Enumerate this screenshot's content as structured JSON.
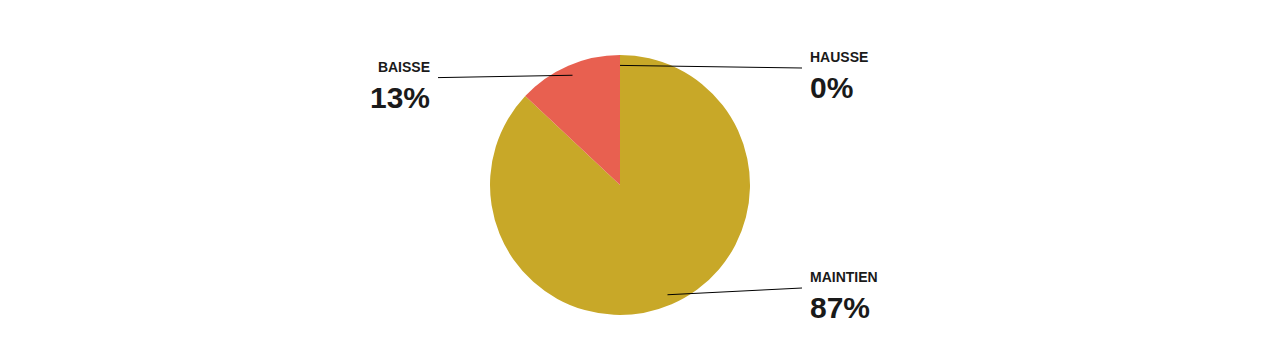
{
  "chart_data": {
    "type": "pie",
    "categories": [
      "HAUSSE",
      "MAINTIEN",
      "BAISSE"
    ],
    "values": [
      0,
      87,
      13
    ],
    "value_labels": [
      "0%",
      "87%",
      "13%"
    ],
    "colors": [
      "#C8C8C8",
      "#C8A828",
      "#E86050"
    ],
    "data_labels": true
  }
}
